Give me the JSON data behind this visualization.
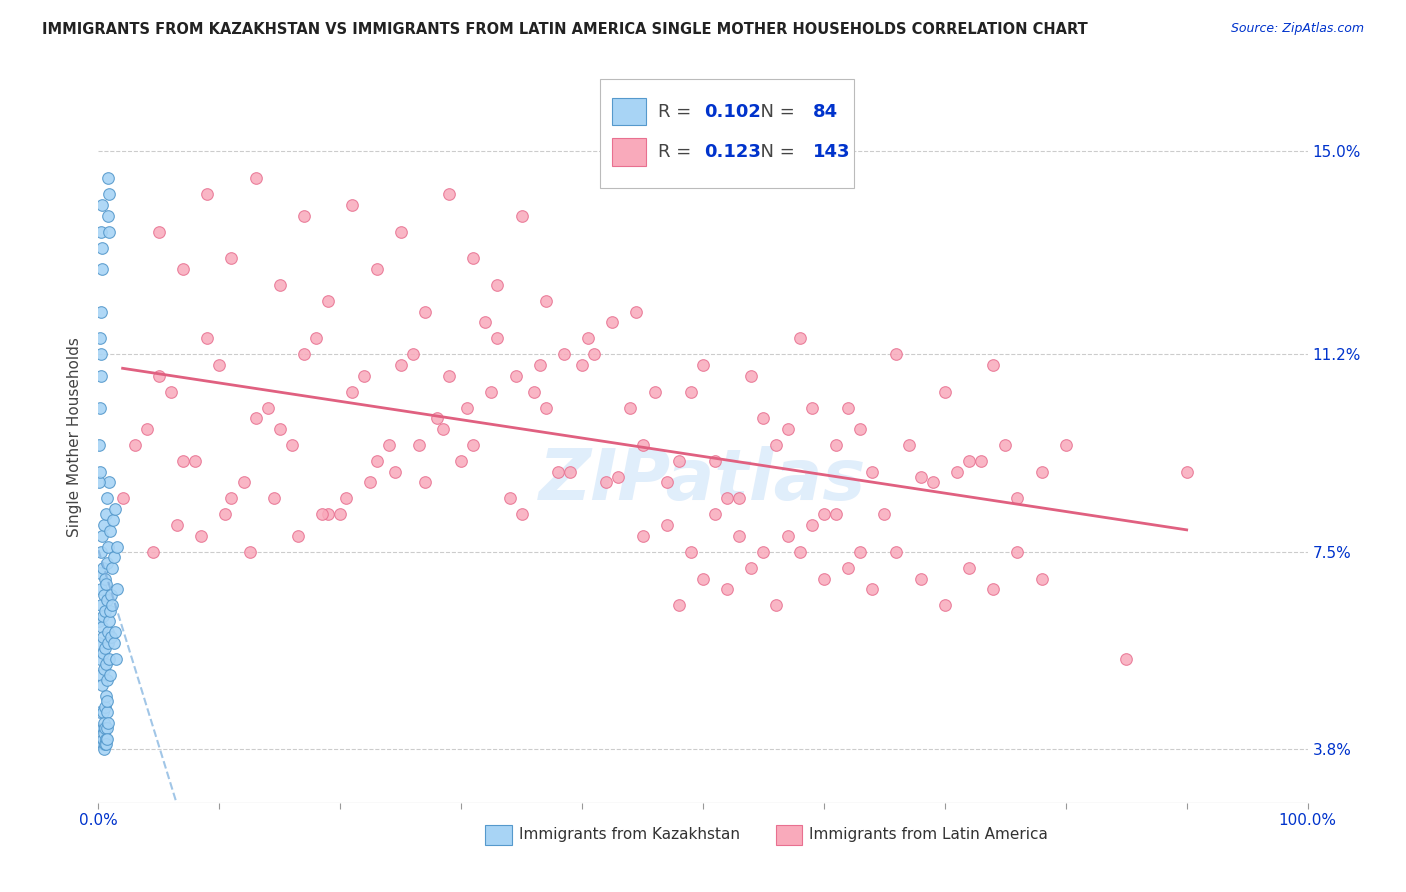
{
  "title": "IMMIGRANTS FROM KAZAKHSTAN VS IMMIGRANTS FROM LATIN AMERICA SINGLE MOTHER HOUSEHOLDS CORRELATION CHART",
  "source": "Source: ZipAtlas.com",
  "ylabel": "Single Mother Households",
  "yticks": [
    3.8,
    7.5,
    11.2,
    15.0
  ],
  "ytick_labels": [
    "3.8%",
    "7.5%",
    "11.2%",
    "15.0%"
  ],
  "xmin": 0.0,
  "xmax": 100.0,
  "ymin": 2.8,
  "ymax": 16.5,
  "kaz_R": 0.102,
  "kaz_N": 84,
  "lat_R": 0.123,
  "lat_N": 143,
  "kaz_color": "#A8D4F5",
  "lat_color": "#F9AABB",
  "kaz_edge_color": "#5599CC",
  "lat_edge_color": "#E87090",
  "kaz_line_color": "#7AAEDD",
  "lat_line_color": "#E06080",
  "marker_size": 70,
  "background_color": "#FFFFFF",
  "title_color": "#222222",
  "axis_color": "#0033CC",
  "grid_color": "#CCCCCC",
  "watermark_text": "ZIPatlas",
  "kaz_x": [
    0.05,
    0.08,
    0.1,
    0.12,
    0.15,
    0.18,
    0.2,
    0.22,
    0.25,
    0.28,
    0.3,
    0.32,
    0.35,
    0.38,
    0.4,
    0.42,
    0.45,
    0.48,
    0.5,
    0.52,
    0.55,
    0.58,
    0.6,
    0.62,
    0.65,
    0.68,
    0.7,
    0.72,
    0.75,
    0.78,
    0.8,
    0.82,
    0.85,
    0.88,
    0.9,
    0.92,
    0.95,
    0.98,
    1.0,
    1.05,
    1.1,
    1.15,
    1.2,
    1.25,
    1.3,
    1.35,
    1.4,
    1.45,
    1.5,
    1.55,
    0.05,
    0.08,
    0.1,
    0.12,
    0.15,
    0.18,
    0.2,
    0.22,
    0.25,
    0.28,
    0.3,
    0.32,
    0.35,
    0.38,
    0.4,
    0.42,
    0.45,
    0.48,
    0.5,
    0.52,
    0.55,
    0.58,
    0.6,
    0.62,
    0.65,
    0.68,
    0.7,
    0.72,
    0.75,
    0.78,
    0.8,
    0.82,
    0.85,
    0.88
  ],
  "kaz_y": [
    6.2,
    5.8,
    7.1,
    4.5,
    5.5,
    6.8,
    5.2,
    7.5,
    6.5,
    5.0,
    7.8,
    6.1,
    5.9,
    7.2,
    6.3,
    5.6,
    8.0,
    6.7,
    5.3,
    7.0,
    6.4,
    5.7,
    8.2,
    6.9,
    5.4,
    7.3,
    6.6,
    5.1,
    8.5,
    6.0,
    5.8,
    7.6,
    6.2,
    5.5,
    8.8,
    6.4,
    5.2,
    7.9,
    6.7,
    5.9,
    7.2,
    6.5,
    8.1,
    5.8,
    7.4,
    6.0,
    8.3,
    5.5,
    7.6,
    6.8,
    9.5,
    8.8,
    10.2,
    9.0,
    11.5,
    10.8,
    12.0,
    11.2,
    13.5,
    12.8,
    14.0,
    13.2,
    4.2,
    3.9,
    4.5,
    4.0,
    3.8,
    4.3,
    4.1,
    3.9,
    4.6,
    4.2,
    4.8,
    4.0,
    3.9,
    4.5,
    4.2,
    4.0,
    4.7,
    4.3,
    14.5,
    13.8,
    14.2,
    13.5
  ],
  "lat_x": [
    2.0,
    4.0,
    6.0,
    8.0,
    10.0,
    12.0,
    14.0,
    16.0,
    18.0,
    20.0,
    22.0,
    24.0,
    26.0,
    28.0,
    30.0,
    32.0,
    34.0,
    36.0,
    38.0,
    40.0,
    42.0,
    44.0,
    3.0,
    5.0,
    7.0,
    9.0,
    11.0,
    13.0,
    15.0,
    17.0,
    19.0,
    21.0,
    23.0,
    25.0,
    27.0,
    29.0,
    31.0,
    33.0,
    35.0,
    37.0,
    39.0,
    41.0,
    43.0,
    46.0,
    48.0,
    50.0,
    52.0,
    54.0,
    56.0,
    58.0,
    60.0,
    62.0,
    64.0,
    66.0,
    68.0,
    70.0,
    72.0,
    74.0,
    76.0,
    78.0,
    45.0,
    47.0,
    49.0,
    51.0,
    53.0,
    55.0,
    57.0,
    59.0,
    61.0,
    63.0,
    65.0,
    67.0,
    69.0,
    71.0,
    73.0,
    75.0,
    4.5,
    6.5,
    8.5,
    10.5,
    12.5,
    14.5,
    16.5,
    18.5,
    20.5,
    22.5,
    24.5,
    26.5,
    28.5,
    30.5,
    32.5,
    34.5,
    36.5,
    38.5,
    40.5,
    42.5,
    44.5,
    80.0,
    85.0,
    90.0,
    55.0,
    57.0,
    59.0,
    61.0,
    63.0,
    45.0,
    47.0,
    49.0,
    51.0,
    53.0,
    48.0,
    50.0,
    52.0,
    54.0,
    56.0,
    58.0,
    60.0,
    62.0,
    64.0,
    66.0,
    68.0,
    70.0,
    72.0,
    74.0,
    76.0,
    78.0,
    5.0,
    7.0,
    9.0,
    11.0,
    13.0,
    15.0,
    17.0,
    19.0,
    21.0,
    23.0,
    25.0,
    27.0,
    29.0,
    31.0,
    33.0,
    35.0,
    37.0
  ],
  "lat_y": [
    8.5,
    9.8,
    10.5,
    9.2,
    11.0,
    8.8,
    10.2,
    9.5,
    11.5,
    8.2,
    10.8,
    9.5,
    11.2,
    10.0,
    9.2,
    11.8,
    8.5,
    10.5,
    9.0,
    11.0,
    8.8,
    10.2,
    9.5,
    10.8,
    9.2,
    11.5,
    8.5,
    10.0,
    9.8,
    11.2,
    8.2,
    10.5,
    9.2,
    11.0,
    8.8,
    10.8,
    9.5,
    11.5,
    8.2,
    10.2,
    9.0,
    11.2,
    8.9,
    10.5,
    9.2,
    11.0,
    8.5,
    10.8,
    9.5,
    11.5,
    8.2,
    10.2,
    9.0,
    11.2,
    8.9,
    10.5,
    9.2,
    11.0,
    8.5,
    9.0,
    9.5,
    8.8,
    10.5,
    9.2,
    8.5,
    10.0,
    9.8,
    10.2,
    9.5,
    9.8,
    8.2,
    9.5,
    8.8,
    9.0,
    9.2,
    9.5,
    7.5,
    8.0,
    7.8,
    8.2,
    7.5,
    8.5,
    7.8,
    8.2,
    8.5,
    8.8,
    9.0,
    9.5,
    9.8,
    10.2,
    10.5,
    10.8,
    11.0,
    11.2,
    11.5,
    11.8,
    12.0,
    9.5,
    5.5,
    9.0,
    7.5,
    7.8,
    8.0,
    8.2,
    7.5,
    7.8,
    8.0,
    7.5,
    8.2,
    7.8,
    6.5,
    7.0,
    6.8,
    7.2,
    6.5,
    7.5,
    7.0,
    7.2,
    6.8,
    7.5,
    7.0,
    6.5,
    7.2,
    6.8,
    7.5,
    7.0,
    13.5,
    12.8,
    14.2,
    13.0,
    14.5,
    12.5,
    13.8,
    12.2,
    14.0,
    12.8,
    13.5,
    12.0,
    14.2,
    13.0,
    12.5,
    13.8,
    12.2
  ]
}
